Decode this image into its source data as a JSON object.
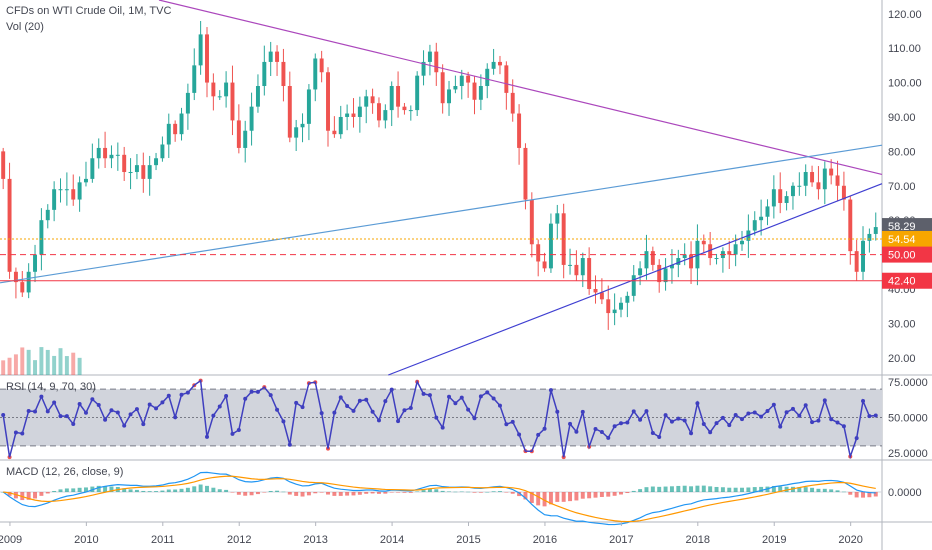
{
  "header": {
    "symbol": "CFDs on WTI Crude Oil, 1M, TVC",
    "volume": "Vol (20)",
    "rsi": "RSI (14, 9, 70, 30)",
    "macd": "MACD (12, 26, close, 9)"
  },
  "colors": {
    "up": "#26a69a",
    "down": "#ef5350",
    "resistance_line": "#ab47bc",
    "upper_channel": "#5b9bd5",
    "lower_channel": "#3f3fd1",
    "rsi_line": "#3f3fbf",
    "macd_line": "#2196f3",
    "signal_line": "#ff9800",
    "support_level": "#f23645",
    "current_level": "#f7a600"
  },
  "chart_data": {
    "type": "candlestick",
    "title": "CFDs on WTI Crude Oil, 1M, TVC",
    "y_axis": {
      "ticks": [
        "120.00",
        "110.00",
        "100.00",
        "90.00",
        "80.00",
        "70.00",
        "60.00",
        "50.00",
        "40.00",
        "30.00",
        "20.00"
      ],
      "ylim": [
        15,
        124
      ]
    },
    "x_axis": {
      "ticks": [
        "2009",
        "2010",
        "2011",
        "2012",
        "2013",
        "2014",
        "2015",
        "2016",
        "2017",
        "2018",
        "2019",
        "2020"
      ],
      "xlim": [
        2008.87,
        2020.41
      ]
    },
    "price_labels": [
      "58.29",
      "54.54",
      "50.00",
      "42.40"
    ],
    "levels": [
      {
        "value": 54.54,
        "label": "54.54",
        "style": "dotted"
      },
      {
        "value": 50.0,
        "label": "50.00",
        "style": "dashed"
      },
      {
        "value": 42.4,
        "label": "42.40",
        "style": "solid"
      }
    ],
    "trendlines": [
      {
        "name": "descending resistance",
        "points": [
          [
            2010.95,
            124
          ],
          [
            2020.41,
            73.3
          ]
        ]
      },
      {
        "name": "upper channel",
        "points": [
          [
            2008.87,
            41.8
          ],
          [
            2020.41,
            81.8
          ]
        ]
      },
      {
        "name": "lower channel",
        "points": [
          [
            2013.95,
            15
          ],
          [
            2020.41,
            70.6
          ]
        ]
      }
    ],
    "monthly_closes": [
      72,
      45,
      42,
      39,
      45,
      50,
      60,
      63,
      69,
      69,
      69,
      66,
      71,
      72,
      78,
      81,
      78,
      79,
      79,
      74,
      74,
      76,
      72,
      76,
      78,
      82,
      88,
      85,
      91,
      97,
      105,
      114,
      100,
      96,
      96,
      100,
      89,
      81,
      86,
      93,
      99,
      106,
      109,
      106,
      99,
      84,
      87,
      88,
      98,
      107,
      103,
      86,
      85,
      90,
      91,
      90,
      93,
      96,
      94,
      89,
      92,
      99,
      93,
      92,
      92,
      102,
      106,
      109,
      103,
      94,
      98,
      99,
      102,
      100,
      95,
      99,
      104,
      106,
      105,
      97,
      91,
      81,
      66,
      53,
      48,
      46,
      59,
      62,
      47,
      47,
      44,
      49,
      40,
      39,
      37,
      33,
      34,
      36,
      38,
      44,
      46,
      51,
      47,
      42,
      46,
      47,
      49,
      50,
      46,
      54,
      53,
      49,
      49,
      51,
      50,
      53,
      54,
      57,
      60,
      61,
      64,
      69,
      65,
      67,
      70,
      70,
      74,
      71,
      69,
      75,
      73,
      70,
      66,
      51,
      45,
      54,
      56,
      58
    ],
    "indicators": {
      "rsi": {
        "params": "14, 9, 70, 30",
        "ticks": [
          "75.0000",
          "50.0000",
          "25.0000"
        ],
        "upper": 70,
        "middle": 50,
        "lower": 30
      },
      "macd": {
        "params": "12, 26, close, 9",
        "ticks": [
          "0.0000"
        ]
      }
    }
  }
}
